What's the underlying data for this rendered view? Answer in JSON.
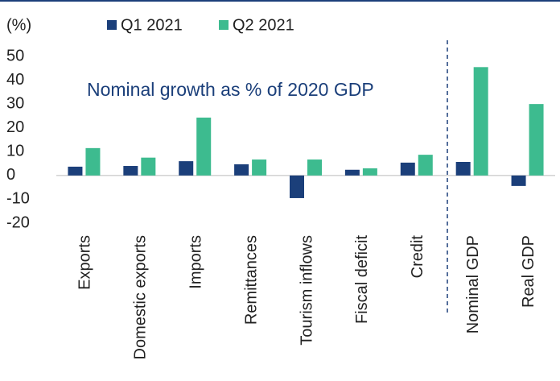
{
  "chart_data": {
    "type": "bar",
    "y_label": "(%)",
    "annotation": "Nominal growth as % of 2020 GDP",
    "categories": [
      "Exports",
      "Domestic exports",
      "Imports",
      "Remittances",
      "Tourism inflows",
      "Fiscal deficit",
      "Credit",
      "Nominal GDP",
      "Real GDP"
    ],
    "series": [
      {
        "name": "Q1 2021",
        "color": "#1b3f7a",
        "values": [
          3.7,
          4,
          6,
          4.7,
          -9.5,
          2.4,
          5.4,
          5.7,
          -4.4
        ]
      },
      {
        "name": "Q2 2021",
        "color": "#3dbb8f",
        "values": [
          11.5,
          7.5,
          24.3,
          6.7,
          6.7,
          3,
          8.7,
          45.5,
          30
        ]
      }
    ],
    "ylim": [
      -20,
      50
    ],
    "yticks": [
      -20,
      -10,
      0,
      10,
      20,
      30,
      40,
      50
    ],
    "grid": false
  }
}
